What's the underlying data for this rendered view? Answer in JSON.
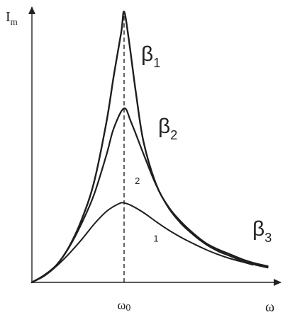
{
  "chart_data": {
    "type": "line",
    "xlabel": "ω",
    "ylabel": "I",
    "ylabel_sub": "m",
    "x_tick": {
      "symbol": "ω",
      "sub": "0",
      "value": 0.3714
    },
    "xlim": [
      0,
      1
    ],
    "ylim": [
      0,
      1
    ],
    "grid": false,
    "legend": "none",
    "series": [
      {
        "name": "β",
        "name_sub": "1",
        "x": [
          0.0,
          0.05,
          0.1,
          0.15,
          0.2,
          0.25,
          0.3,
          0.33,
          0.36,
          0.3714,
          0.39,
          0.42,
          0.45,
          0.5,
          0.55,
          0.6,
          0.65,
          0.7,
          0.75,
          0.8,
          0.85,
          0.9,
          0.95
        ],
        "y": [
          0.0,
          0.026,
          0.063,
          0.128,
          0.224,
          0.358,
          0.573,
          0.742,
          0.897,
          0.971,
          0.874,
          0.674,
          0.503,
          0.353,
          0.271,
          0.218,
          0.176,
          0.141,
          0.118,
          0.1,
          0.082,
          0.068,
          0.058
        ]
      },
      {
        "name": "β",
        "name_sub": "2",
        "x": [
          0.0,
          0.05,
          0.1,
          0.15,
          0.2,
          0.25,
          0.3,
          0.33,
          0.3714,
          0.4,
          0.45,
          0.5,
          0.55,
          0.6,
          0.65,
          0.7,
          0.75,
          0.8,
          0.85,
          0.9,
          0.95
        ],
        "y": [
          0.0,
          0.026,
          0.063,
          0.126,
          0.211,
          0.314,
          0.456,
          0.553,
          0.624,
          0.574,
          0.46,
          0.35,
          0.268,
          0.212,
          0.171,
          0.137,
          0.112,
          0.094,
          0.076,
          0.063,
          0.053
        ]
      },
      {
        "name": "β",
        "name_sub": "3",
        "x": [
          0.0,
          0.05,
          0.1,
          0.15,
          0.2,
          0.25,
          0.3,
          0.35,
          0.3714,
          0.4,
          0.45,
          0.5,
          0.55,
          0.6,
          0.65,
          0.7,
          0.75,
          0.8,
          0.85,
          0.89
        ],
        "y": [
          0.0,
          0.023,
          0.059,
          0.103,
          0.153,
          0.208,
          0.254,
          0.282,
          0.285,
          0.276,
          0.25,
          0.218,
          0.188,
          0.162,
          0.139,
          0.118,
          0.1,
          0.085,
          0.073,
          0.063
        ]
      }
    ],
    "annotations": [
      {
        "text": "2",
        "x": 0.425,
        "y": 0.353
      },
      {
        "text": "1",
        "x": 0.5,
        "y": 0.146
      }
    ]
  }
}
